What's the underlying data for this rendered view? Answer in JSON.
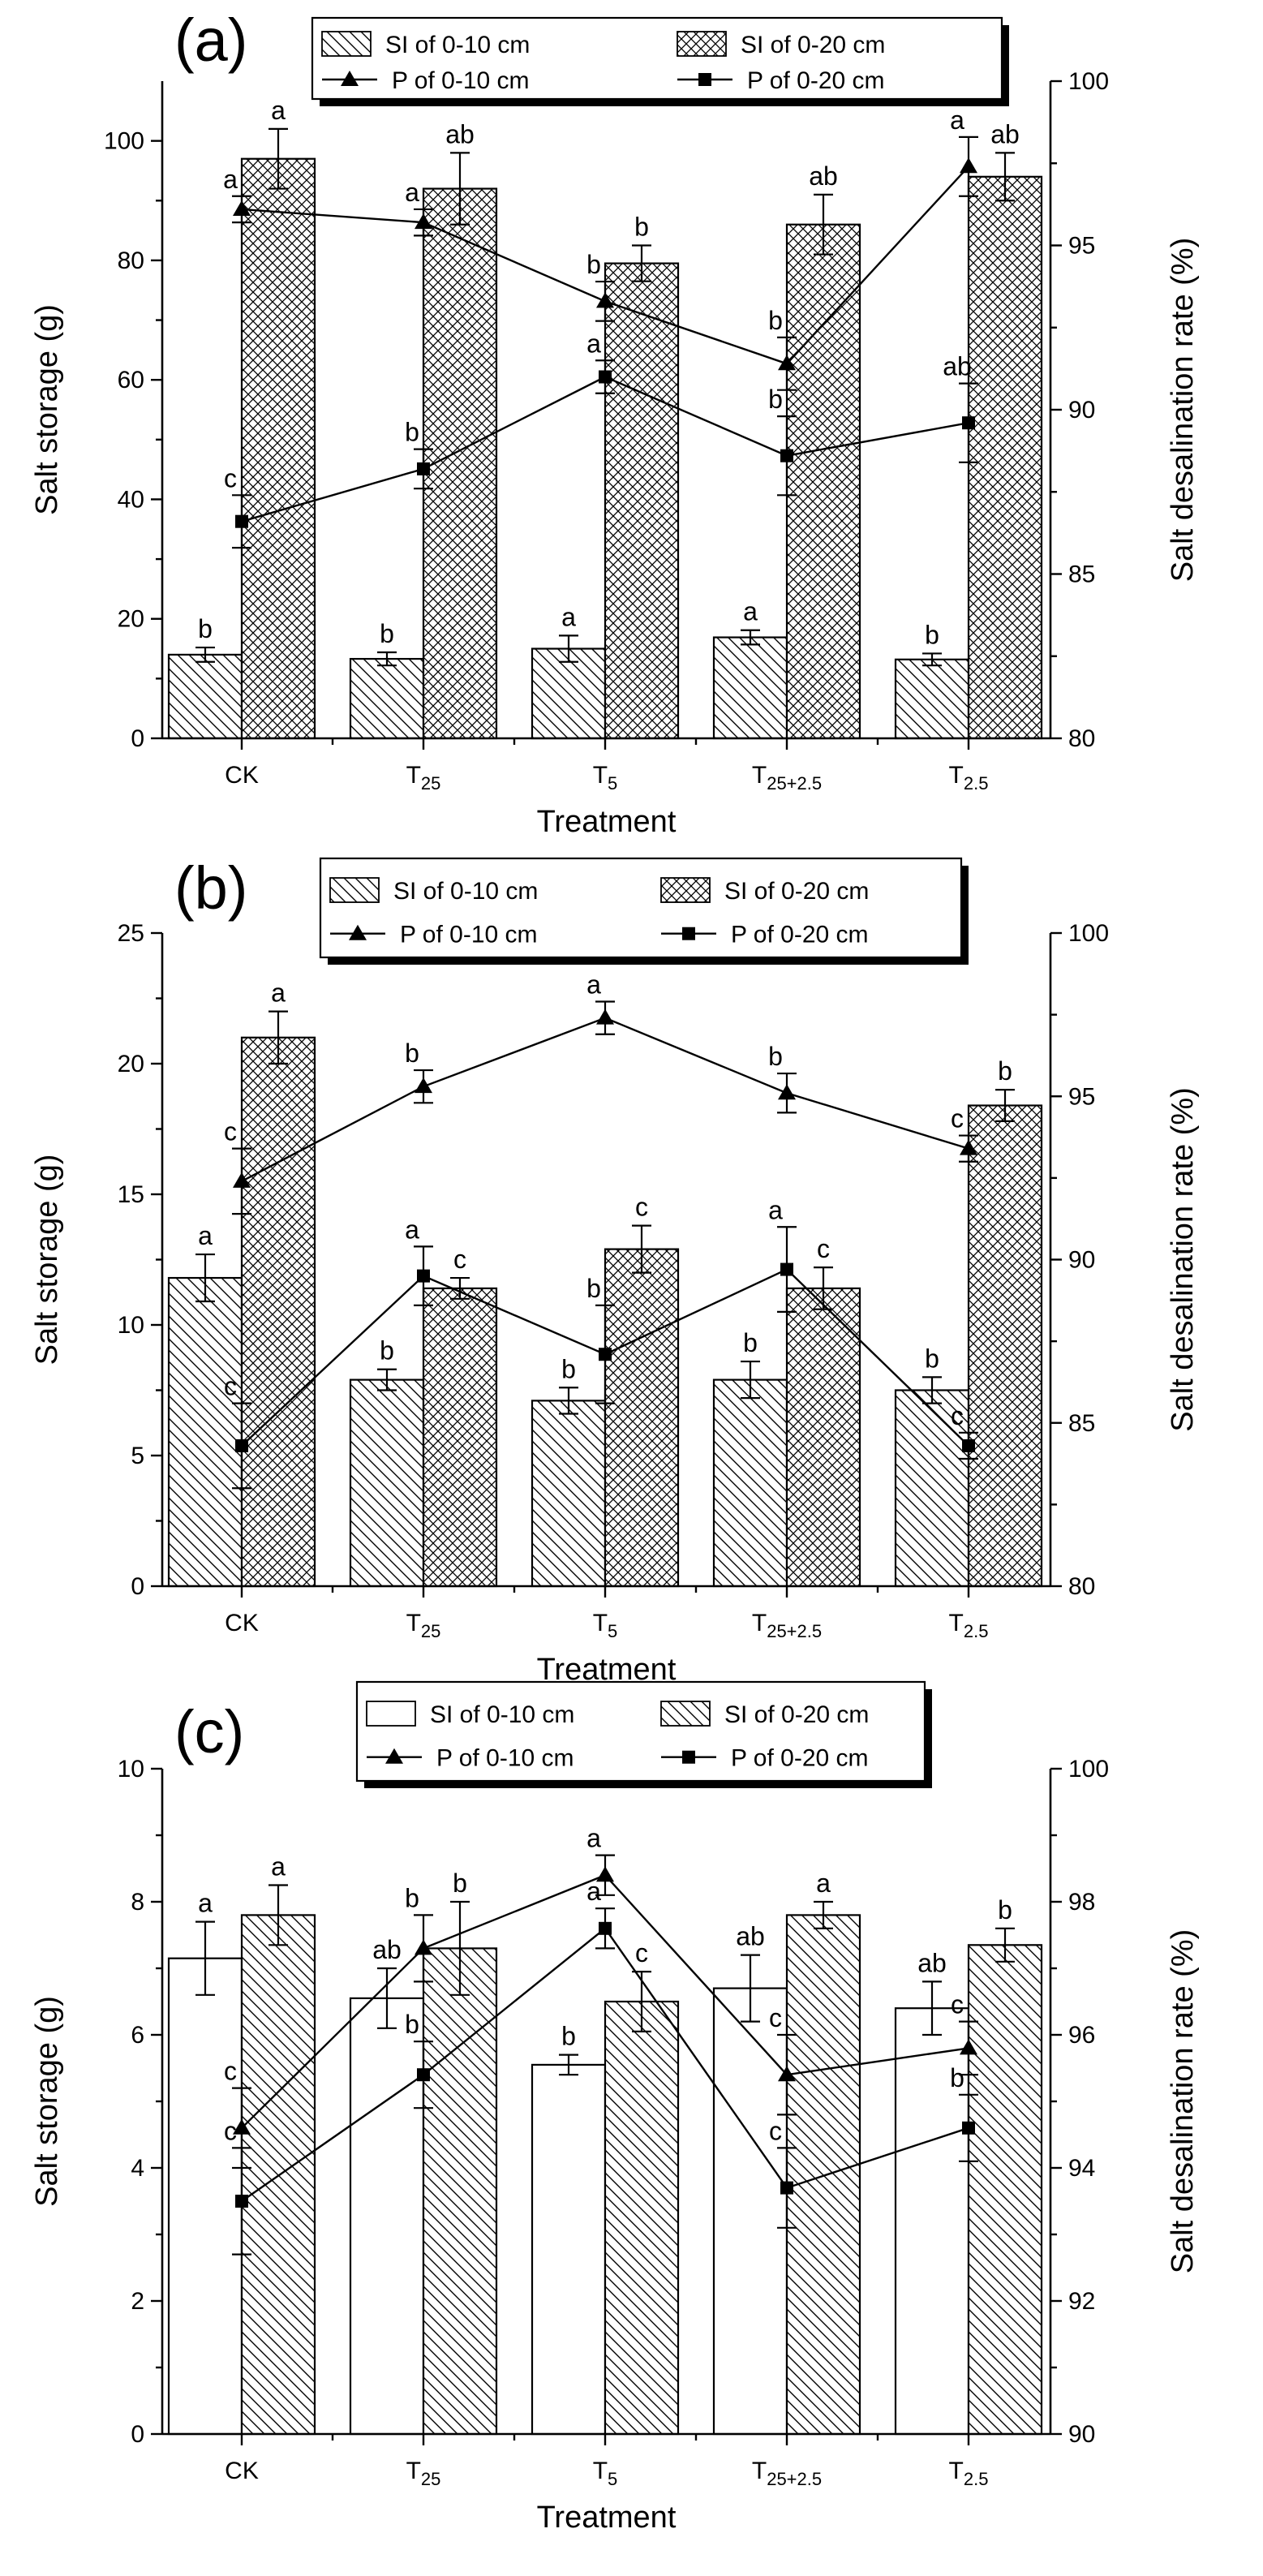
{
  "chart_data": [
    {
      "type": "bar",
      "panel": "(a)",
      "categories": [
        "CK",
        "T25",
        "T5",
        "T25+2.5",
        "T2.5"
      ],
      "category_labels": [
        {
          "main": "CK",
          "sub": ""
        },
        {
          "main": "T",
          "sub": "25"
        },
        {
          "main": "T",
          "sub": "5"
        },
        {
          "main": "T",
          "sub": "25+2.5"
        },
        {
          "main": "T",
          "sub": "2.5"
        }
      ],
      "xlabel": "Treatment",
      "ylabel": "Salt storage (g)",
      "y2label": "Salt desalination rate (%)",
      "ylim": [
        0,
        110
      ],
      "yticks": [
        0,
        20,
        40,
        60,
        80,
        100
      ],
      "y2lim": [
        80,
        100
      ],
      "y2ticks": [
        80,
        85,
        90,
        95,
        100
      ],
      "bar_series": [
        {
          "name": "SI of 0-10 cm",
          "pattern": "diag",
          "values": [
            14.0,
            13.3,
            15.0,
            16.9,
            13.2
          ],
          "errors": [
            1.2,
            1.1,
            2.2,
            1.2,
            1.0
          ],
          "letters": [
            "b",
            "b",
            "a",
            "a",
            "b"
          ]
        },
        {
          "name": "SI of 0-20 cm",
          "pattern": "cross",
          "values": [
            97.0,
            92.0,
            79.5,
            86.0,
            94.0
          ],
          "errors": [
            5.0,
            6.0,
            3.0,
            5.0,
            4.0
          ],
          "letters": [
            "a",
            "ab",
            "b",
            "ab",
            "ab"
          ]
        }
      ],
      "line_series": [
        {
          "name": "P of 0-10 cm",
          "marker": "triangle",
          "values": [
            96.1,
            95.7,
            93.3,
            91.4,
            97.4
          ],
          "errors": [
            0.4,
            0.4,
            0.6,
            0.8,
            0.9
          ],
          "letters": [
            "a",
            "a",
            "b",
            "b",
            "a"
          ]
        },
        {
          "name": "P of 0-20 cm",
          "marker": "square",
          "values": [
            86.6,
            88.2,
            91.0,
            88.6,
            89.6
          ],
          "errors": [
            0.8,
            0.6,
            0.5,
            1.2,
            1.2
          ],
          "letters": [
            "c",
            "b",
            "a",
            "b",
            "ab"
          ]
        }
      ]
    },
    {
      "type": "bar",
      "panel": "(b)",
      "categories": [
        "CK",
        "T25",
        "T5",
        "T25+2.5",
        "T2.5"
      ],
      "category_labels": [
        {
          "main": "CK",
          "sub": ""
        },
        {
          "main": "T",
          "sub": "25"
        },
        {
          "main": "T",
          "sub": "5"
        },
        {
          "main": "T",
          "sub": "25+2.5"
        },
        {
          "main": "T",
          "sub": "2.5"
        }
      ],
      "xlabel": "Treatment",
      "ylabel": "Salt storage (g)",
      "y2label": "Salt desalination rate (%)",
      "ylim": [
        0,
        25
      ],
      "yticks": [
        0,
        5,
        10,
        15,
        20,
        25
      ],
      "y2lim": [
        80,
        100
      ],
      "y2ticks": [
        80,
        85,
        90,
        95,
        100
      ],
      "bar_series": [
        {
          "name": "SI of 0-10 cm",
          "pattern": "diag",
          "values": [
            11.8,
            7.9,
            7.1,
            7.9,
            7.5
          ],
          "errors": [
            0.9,
            0.4,
            0.5,
            0.7,
            0.5
          ],
          "letters": [
            "a",
            "b",
            "b",
            "b",
            "b"
          ]
        },
        {
          "name": "SI of 0-20 cm",
          "pattern": "cross",
          "values": [
            21.0,
            11.4,
            12.9,
            11.4,
            18.4
          ],
          "errors": [
            1.0,
            0.4,
            0.9,
            0.8,
            0.6
          ],
          "letters": [
            "a",
            "c",
            "c",
            "c",
            "b"
          ]
        }
      ],
      "line_series": [
        {
          "name": "P of 0-10 cm",
          "marker": "triangle",
          "values": [
            92.4,
            95.3,
            97.4,
            95.1,
            93.4
          ],
          "errors": [
            1.0,
            0.5,
            0.5,
            0.6,
            0.4
          ],
          "letters": [
            "c",
            "b",
            "a",
            "b",
            "c"
          ]
        },
        {
          "name": "P of 0-20 cm",
          "marker": "square",
          "values": [
            84.3,
            89.5,
            87.1,
            89.7,
            84.3
          ],
          "errors": [
            1.3,
            0.9,
            1.5,
            1.3,
            0.4
          ],
          "letters": [
            "c",
            "a",
            "b",
            "a",
            "c"
          ]
        }
      ]
    },
    {
      "type": "bar",
      "panel": "(c)",
      "categories": [
        "CK",
        "T25",
        "T5",
        "T25+2.5",
        "T2.5"
      ],
      "category_labels": [
        {
          "main": "CK",
          "sub": ""
        },
        {
          "main": "T",
          "sub": "25"
        },
        {
          "main": "T",
          "sub": "5"
        },
        {
          "main": "T",
          "sub": "25+2.5"
        },
        {
          "main": "T",
          "sub": "2.5"
        }
      ],
      "xlabel": "Treatment",
      "ylabel": "Salt storage (g)",
      "y2label": "Salt desalination rate (%)",
      "ylim": [
        0,
        10
      ],
      "yticks": [
        0,
        2,
        4,
        6,
        8,
        10
      ],
      "y2lim": [
        90,
        100
      ],
      "y2ticks": [
        90,
        92,
        94,
        96,
        98,
        100
      ],
      "bar_series": [
        {
          "name": "SI of 0-10 cm",
          "pattern": "none",
          "values": [
            7.15,
            6.55,
            5.55,
            6.7,
            6.4
          ],
          "errors": [
            0.55,
            0.45,
            0.15,
            0.5,
            0.4
          ],
          "letters": [
            "a",
            "ab",
            "b",
            "ab",
            "ab"
          ]
        },
        {
          "name": "SI of 0-20 cm",
          "pattern": "diag",
          "values": [
            7.8,
            7.3,
            6.5,
            7.8,
            7.35
          ],
          "errors": [
            0.45,
            0.7,
            0.45,
            0.2,
            0.25
          ],
          "letters": [
            "a",
            "b",
            "c",
            "a",
            "b"
          ]
        }
      ],
      "line_series": [
        {
          "name": "P of 0-10 cm",
          "marker": "triangle",
          "values": [
            94.6,
            97.3,
            98.4,
            95.4,
            95.8
          ],
          "errors": [
            0.6,
            0.5,
            0.3,
            0.6,
            0.4
          ],
          "letters": [
            "c",
            "b",
            "a",
            "c",
            "c"
          ]
        },
        {
          "name": "P of 0-20 cm",
          "marker": "square",
          "values": [
            93.5,
            95.4,
            97.6,
            93.7,
            94.6
          ],
          "errors": [
            0.8,
            0.5,
            0.3,
            0.6,
            0.5
          ],
          "letters": [
            "c",
            "b",
            "a",
            "c",
            "b"
          ]
        }
      ]
    }
  ]
}
